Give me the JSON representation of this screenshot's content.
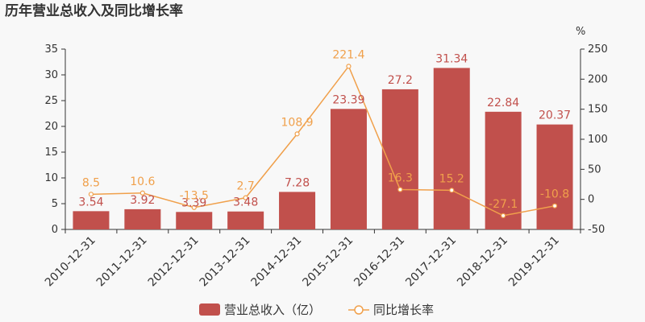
{
  "chart_data": {
    "type": "bar",
    "title": "历年营业总收入及同比增长率",
    "categories": [
      "2010-12-31",
      "2011-12-31",
      "2012-12-31",
      "2013-12-31",
      "2014-12-31",
      "2015-12-31",
      "2016-12-31",
      "2017-12-31",
      "2018-12-31",
      "2019-12-31"
    ],
    "series": [
      {
        "name": "营业总收入（亿）",
        "type": "bar",
        "axis": "left",
        "color": "#c1504c",
        "values": [
          3.54,
          3.92,
          3.39,
          3.48,
          7.28,
          23.39,
          27.2,
          31.34,
          22.84,
          20.37
        ],
        "labels": [
          "3.54",
          "3.92",
          "3.39",
          "3.48",
          "7.28",
          "23.39",
          "27.2",
          "31.34",
          "22.84",
          "20.37"
        ]
      },
      {
        "name": "同比增长率",
        "type": "line",
        "axis": "right",
        "color": "#f0a04b",
        "values": [
          8.5,
          10.6,
          -13.5,
          2.7,
          108.9,
          221.4,
          16.3,
          15.2,
          -27.1,
          -10.8
        ],
        "labels": [
          "8.5",
          "10.6",
          "-13.5",
          "2.7",
          "108.9",
          "221.4",
          "16.3",
          "15.2",
          "-27.1",
          "-10.8"
        ]
      }
    ],
    "y_left": {
      "min": 0,
      "max": 35,
      "ticks": [
        "0",
        "5",
        "10",
        "15",
        "20",
        "25",
        "30",
        "35"
      ]
    },
    "y_right": {
      "min": -50,
      "max": 250,
      "unit": "%",
      "ticks": [
        "-50",
        "0",
        "50",
        "100",
        "150",
        "200",
        "250"
      ]
    },
    "legend": {
      "position": "bottom"
    },
    "grid": false
  }
}
